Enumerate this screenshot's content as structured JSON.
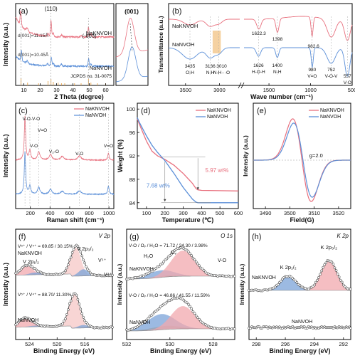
{
  "colors": {
    "red": "#e8707e",
    "blue": "#5b8fd8",
    "pinkfill": "#f2a8ae",
    "bluefill": "#7ba3d8",
    "highlight": "#f2c58a"
  },
  "chart_data": [
    {
      "id": "a",
      "type": "line",
      "panel_label": "(a)",
      "xlabel": "2 Theta (degree)",
      "ylabel": "Intensity (a.u.)",
      "xlim": [
        5,
        65
      ],
      "xticks": [
        10,
        20,
        30,
        40,
        50,
        60
      ],
      "annotations": [
        "(110)",
        "(-603)",
        "d(001)=11.15Å",
        "d(001)=10.45Å",
        "JCPDS no. 31-0075"
      ],
      "series": [
        {
          "name": "NaKNVOH",
          "color": "red"
        },
        {
          "name": "NaNVOH",
          "color": "blue"
        }
      ],
      "inset_label": "(001)"
    },
    {
      "id": "b",
      "type": "line",
      "panel_label": "(b)",
      "xlabel": "Wave number (cm⁻¹)",
      "ylabel": "Transmittance (a.u.)",
      "xticks": [
        3500,
        3000,
        1500,
        1000,
        500
      ],
      "series": [
        {
          "name": "NaKNVOH",
          "color": "red"
        },
        {
          "name": "NaNVOH",
          "color": "blue"
        }
      ],
      "peaks": [
        {
          "pos": "3435",
          "label": "O-H"
        },
        {
          "pos": "3136",
          "label": "N-H"
        },
        {
          "pos": "3010",
          "label": "N-H···O"
        },
        {
          "pos": "1622.3",
          "label": ""
        },
        {
          "pos": "1398",
          "label": ""
        },
        {
          "pos": "1626",
          "label": "H-O-H"
        },
        {
          "pos": "1400",
          "label": "N-H"
        },
        {
          "pos": "982.6",
          "label": ""
        },
        {
          "pos": "980",
          "label": "V=O"
        },
        {
          "pos": "752",
          "label": "V-O-V"
        },
        {
          "pos": "557",
          "label": "V-O"
        }
      ]
    },
    {
      "id": "c",
      "type": "line",
      "panel_label": "(c)",
      "xlabel": "Raman shift (cm⁻¹)",
      "ylabel": "Intensity (a.u.)",
      "xlim": [
        50,
        1050
      ],
      "xticks": [
        200,
        400,
        600,
        800,
        1000
      ],
      "series": [
        {
          "name": "NaKNVOH",
          "color": "red"
        },
        {
          "name": "NaNVOH",
          "color": "blue"
        }
      ],
      "bands": [
        "V-O-V-O",
        "V=O",
        "V-O",
        "V₂-O",
        "V-O",
        "V=O"
      ]
    },
    {
      "id": "d",
      "type": "line",
      "panel_label": "(d)",
      "xlabel": "Temperature (℃)",
      "ylabel": "Weight (%)",
      "xlim": [
        50,
        600
      ],
      "ylim": [
        83,
        101
      ],
      "xticks": [
        100,
        200,
        300,
        400,
        500,
        600
      ],
      "yticks": [
        84,
        88,
        92,
        96,
        100
      ],
      "series": [
        {
          "name": "NaKNVOH",
          "color": "red",
          "x": [
            30,
            60,
            100,
            130,
            160,
            200,
            250,
            300,
            350,
            370,
            380,
            400,
            500,
            600
          ],
          "y": [
            100,
            97.5,
            94.5,
            92.8,
            92,
            91.4,
            90.4,
            89,
            87.3,
            86.4,
            86.2,
            86.1,
            86.05,
            86.0
          ]
        },
        {
          "name": "NaNVOH",
          "color": "blue",
          "x": [
            30,
            60,
            100,
            130,
            160,
            200,
            250,
            300,
            350,
            370,
            380,
            400,
            500,
            600
          ],
          "y": [
            100,
            97.8,
            95.4,
            93.8,
            92.6,
            91.2,
            89,
            86.6,
            84.6,
            84.1,
            84.0,
            84.0,
            84.0,
            84.0
          ]
        }
      ],
      "annotations": [
        "7.68 wt%",
        "5.97 wt%"
      ]
    },
    {
      "id": "e",
      "type": "line",
      "panel_label": "(e)",
      "xlabel": "Field(G)",
      "ylabel": "Intensity (a.u.)",
      "xlim": [
        3485,
        3525
      ],
      "xticks": [
        3490,
        3500,
        3510,
        3520
      ],
      "series": [
        {
          "name": "NaKNVOH",
          "color": "red"
        },
        {
          "name": "NaNVOH",
          "color": "blue"
        }
      ],
      "annotations": [
        "g=2.0"
      ]
    },
    {
      "id": "f",
      "type": "line",
      "panel_label": "(f)",
      "title": "V 2p",
      "xlabel": "Binding Energy (eV)",
      "ylabel": "Intensity (a.u.)",
      "xlim": [
        526,
        512
      ],
      "xticks": [
        524,
        520,
        516
      ],
      "samples": [
        "NaKNVOH",
        "NaNVOH"
      ],
      "ratios": [
        "V⁵⁺ / V⁴⁺ = 69.85 / 30.15%",
        "V⁵⁺ / V⁴⁺ = 88.70/ 11.30%"
      ],
      "peak_labels": [
        "V 2p₁/₂",
        "V 2p₃/₂",
        "V⁵⁺",
        "V⁴⁺"
      ]
    },
    {
      "id": "g",
      "type": "line",
      "panel_label": "(g)",
      "title": "O 1s",
      "xlabel": "Binding Energy (eV)",
      "ylabel": "Intensity (a.u.)",
      "xlim": [
        532,
        527
      ],
      "xticks": [
        532,
        530,
        528
      ],
      "samples": [
        "NaKNVOH",
        "NaNVOH"
      ],
      "ratios": [
        "V-O / Oᵥ / H₂O = 71.72 / 24.30 / 3.98%",
        "V-O / Oᵥ / H₂O = 46.86 / 41.55 / 11.59%"
      ],
      "peak_labels": [
        "H₂O",
        "Oᵥ",
        "V-O"
      ]
    },
    {
      "id": "h",
      "type": "line",
      "panel_label": "(h)",
      "title": "K 2p",
      "xlabel": "Binding Energy (eV)",
      "ylabel": "Intensity (a.u.)",
      "xlim": [
        298.5,
        291.5
      ],
      "xticks": [
        298,
        296,
        294,
        292
      ],
      "samples": [
        "NaKNVOH",
        "NaNVOH"
      ],
      "peak_labels": [
        "K 2p₁/₂",
        "K 2p₃/₂"
      ]
    }
  ]
}
